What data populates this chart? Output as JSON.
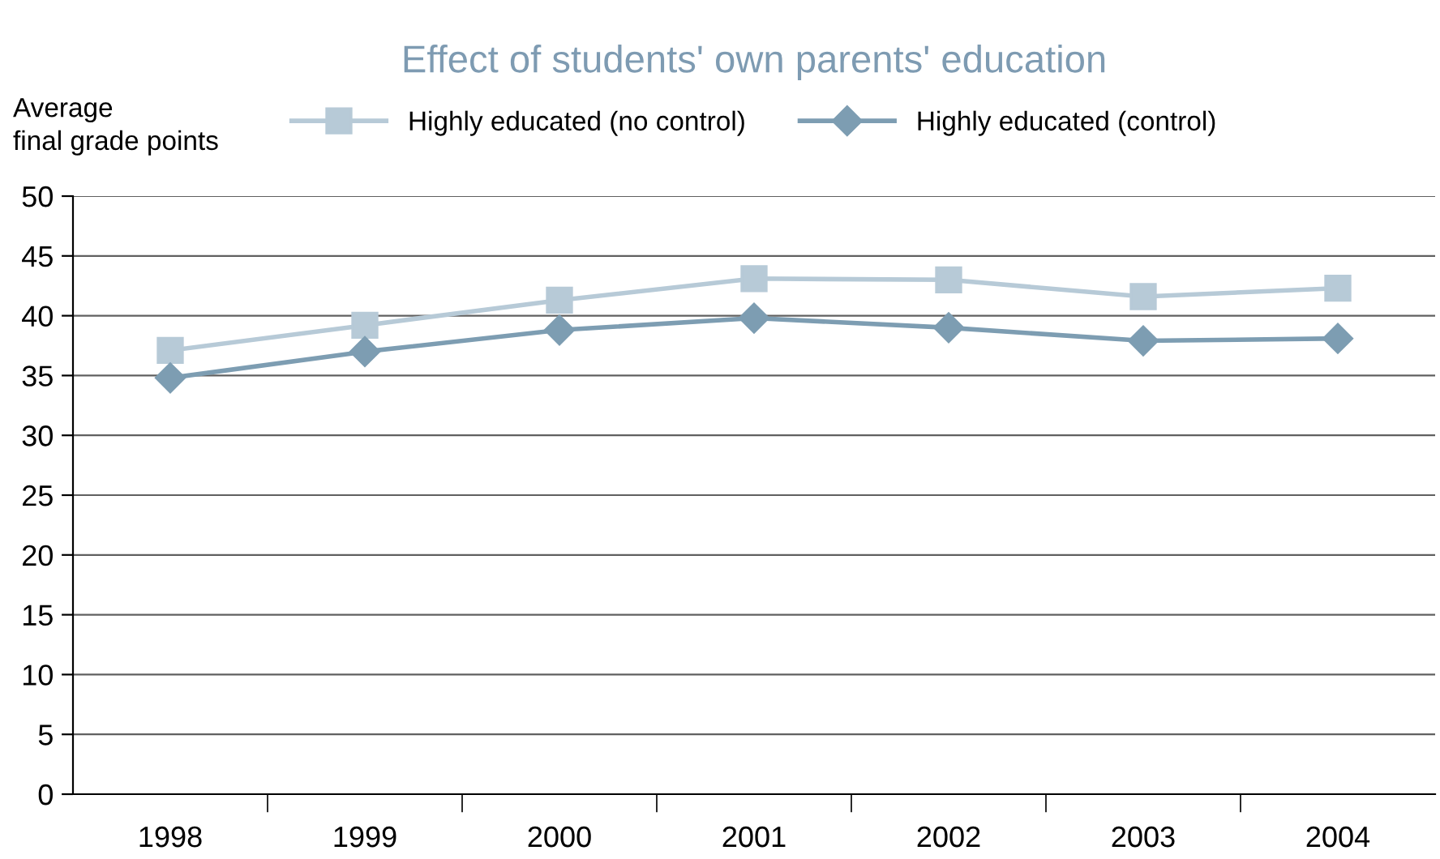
{
  "chart_data": {
    "type": "line",
    "title": "Effect of students' own parents' education",
    "ylabel": "Average\nfinal grade points",
    "categories": [
      "1998",
      "1999",
      "2000",
      "2001",
      "2002",
      "2003",
      "2004"
    ],
    "series": [
      {
        "name": "Highly educated (no control)",
        "color": "#b7cad7",
        "marker": "square",
        "values": [
          37.1,
          39.2,
          41.3,
          43.1,
          43.0,
          41.6,
          42.3
        ]
      },
      {
        "name": "Highly educated (control)",
        "color": "#7d9db2",
        "marker": "diamond",
        "values": [
          34.8,
          37.0,
          38.8,
          39.8,
          39.0,
          37.9,
          38.1
        ]
      }
    ],
    "ylim": [
      0,
      50
    ],
    "yticks": [
      0,
      5,
      10,
      15,
      20,
      25,
      30,
      35,
      40,
      45,
      50
    ],
    "grid": "y",
    "legend": "top",
    "line_style": "solid"
  }
}
